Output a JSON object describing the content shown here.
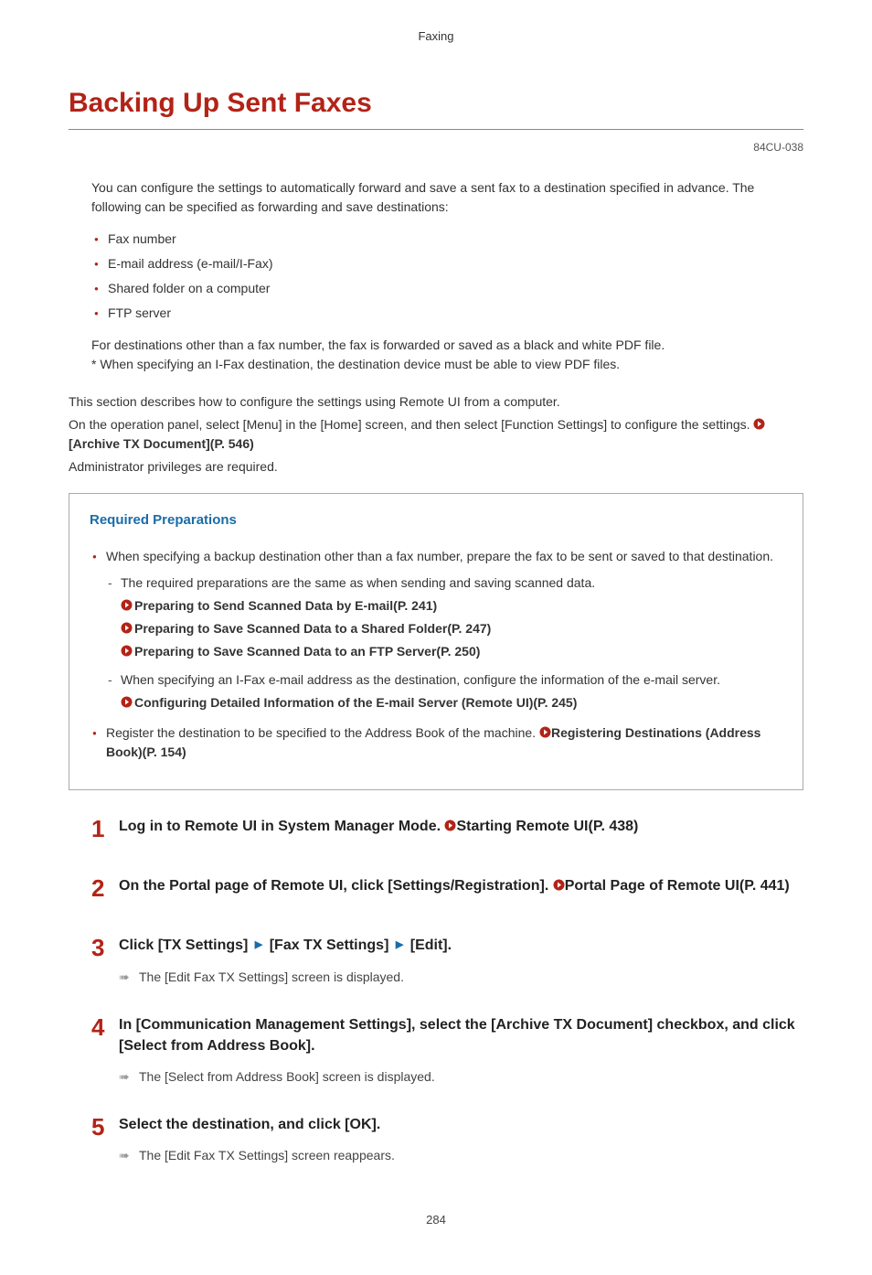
{
  "header": {
    "section": "Faxing"
  },
  "title": "Backing Up Sent Faxes",
  "doc_id": "84CU-038",
  "intro": "You can configure the settings to automatically forward and save a sent fax to a destination specified in advance. The following can be specified as forwarding and save destinations:",
  "dest_items": [
    "Fax number",
    "E-mail address (e-mail/I-Fax)",
    "Shared folder on a computer",
    "FTP server"
  ],
  "note1": "For destinations other than a fax number, the fax is forwarded or saved as a black and white PDF file.",
  "note2": "* When specifying an I-Fax destination, the destination device must be able to view PDF files.",
  "config": {
    "line1": "This section describes how to configure the settings using Remote UI from a computer.",
    "line2_pre": "On the operation panel, select [Menu] in the [Home] screen, and then select [Function Settings] to configure the settings. ",
    "link": "[Archive TX Document](P. 546)",
    "line3": "Administrator privileges are required."
  },
  "prep": {
    "heading": "Required Preparations",
    "item1": "When specifying a backup destination other than a fax number, prepare the fax to be sent or saved to that destination.",
    "sub1_intro": "The required preparations are the same as when sending and saving scanned data.",
    "sub1_links": [
      "Preparing to Send Scanned Data by E-mail(P. 241)",
      "Preparing to Save Scanned Data to a Shared Folder(P. 247)",
      "Preparing to Save Scanned Data to an FTP Server(P. 250)"
    ],
    "sub2_intro": "When specifying an I-Fax e-mail address as the destination, configure the information of the e-mail server.",
    "sub2_link": "Configuring Detailed Information of the E-mail Server (Remote UI)(P. 245)",
    "item2_pre": "Register the destination to be specified to the Address Book of the machine. ",
    "item2_link": "Registering Destinations (Address Book)(P. 154)"
  },
  "steps": [
    {
      "n": "1",
      "title_pre": "Log in to Remote UI in System Manager Mode. ",
      "title_link": "Starting Remote UI(P. 438)"
    },
    {
      "n": "2",
      "title_pre": "On the Portal page of Remote UI, click [Settings/Registration]. ",
      "title_link": "Portal Page of Remote UI(P. 441)"
    },
    {
      "n": "3",
      "title_parts": [
        "Click [TX Settings] ",
        " [Fax TX Settings] ",
        " [Edit]."
      ],
      "result": "The [Edit Fax TX Settings] screen is displayed."
    },
    {
      "n": "4",
      "title_pre": "In [Communication Management Settings], select the [Archive TX Document] checkbox, and click [Select from Address Book].",
      "result": "The [Select from Address Book] screen is displayed."
    },
    {
      "n": "5",
      "title_pre": "Select the destination, and click [OK].",
      "result": "The [Edit Fax TX Settings] screen reappears."
    }
  ],
  "page_number": "284"
}
